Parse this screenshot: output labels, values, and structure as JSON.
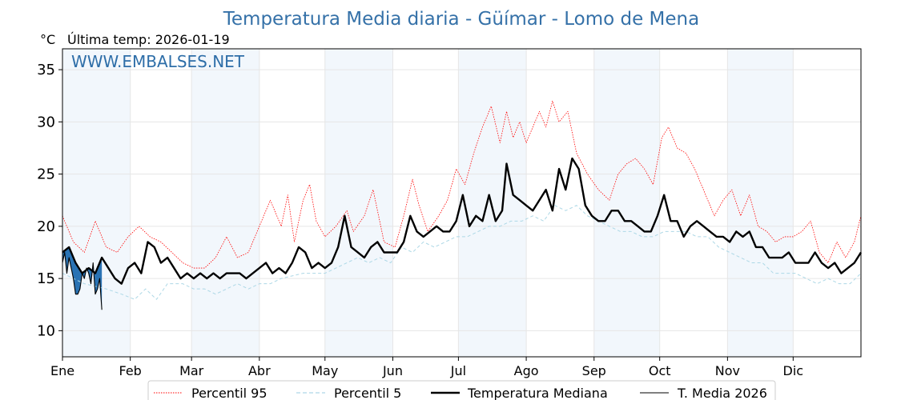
{
  "chart_data": {
    "type": "line",
    "title": "Temperatura Media diaria - Güímar - Lomo de Mena",
    "unit_label": "°C",
    "last_temp_label": "Última temp: 2026-01-19",
    "watermark": "WWW.EMBALSES.NET",
    "ylim": [
      7.5,
      37.0
    ],
    "xlim_days": [
      0,
      365
    ],
    "yticks": [
      10,
      15,
      20,
      25,
      30,
      35
    ],
    "months": [
      {
        "label": "Ene",
        "day": 0
      },
      {
        "label": "Feb",
        "day": 31
      },
      {
        "label": "Mar",
        "day": 59
      },
      {
        "label": "Abr",
        "day": 90
      },
      {
        "label": "May",
        "day": 120
      },
      {
        "label": "Jun",
        "day": 151
      },
      {
        "label": "Jul",
        "day": 181
      },
      {
        "label": "Ago",
        "day": 212
      },
      {
        "label": "Sep",
        "day": 243
      },
      {
        "label": "Oct",
        "day": 273
      },
      {
        "label": "Nov",
        "day": 304
      },
      {
        "label": "Dic",
        "day": 334
      }
    ],
    "grid": true,
    "legend_position": "bottom-center",
    "series": [
      {
        "name": "Percentil 95",
        "color": "#ff0000",
        "style": "dotted",
        "anchors": [
          [
            0,
            21.0
          ],
          [
            5,
            18.5
          ],
          [
            10,
            17.5
          ],
          [
            15,
            20.5
          ],
          [
            20,
            18.0
          ],
          [
            25,
            17.5
          ],
          [
            30,
            19.0
          ],
          [
            35,
            20.0
          ],
          [
            40,
            19.0
          ],
          [
            45,
            18.5
          ],
          [
            50,
            17.5
          ],
          [
            55,
            16.5
          ],
          [
            60,
            16.0
          ],
          [
            65,
            16.0
          ],
          [
            70,
            17.0
          ],
          [
            75,
            19.0
          ],
          [
            80,
            17.0
          ],
          [
            85,
            17.5
          ],
          [
            90,
            20.0
          ],
          [
            95,
            22.5
          ],
          [
            100,
            20.0
          ],
          [
            103,
            23.0
          ],
          [
            106,
            18.5
          ],
          [
            110,
            22.5
          ],
          [
            113,
            24.0
          ],
          [
            116,
            20.5
          ],
          [
            120,
            19.0
          ],
          [
            125,
            20.0
          ],
          [
            130,
            21.5
          ],
          [
            133,
            19.5
          ],
          [
            138,
            21.0
          ],
          [
            142,
            23.5
          ],
          [
            147,
            18.5
          ],
          [
            152,
            18.0
          ],
          [
            156,
            21.0
          ],
          [
            160,
            24.5
          ],
          [
            163,
            22.0
          ],
          [
            167,
            19.5
          ],
          [
            172,
            21.0
          ],
          [
            176,
            22.5
          ],
          [
            180,
            25.5
          ],
          [
            184,
            24.0
          ],
          [
            188,
            27.0
          ],
          [
            192,
            29.5
          ],
          [
            196,
            31.5
          ],
          [
            200,
            28.0
          ],
          [
            203,
            31.0
          ],
          [
            206,
            28.5
          ],
          [
            209,
            30.0
          ],
          [
            212,
            28.0
          ],
          [
            215,
            29.5
          ],
          [
            218,
            31.0
          ],
          [
            221,
            29.5
          ],
          [
            224,
            32.0
          ],
          [
            227,
            30.0
          ],
          [
            231,
            31.0
          ],
          [
            235,
            27.0
          ],
          [
            240,
            25.0
          ],
          [
            245,
            23.5
          ],
          [
            250,
            22.5
          ],
          [
            254,
            25.0
          ],
          [
            258,
            26.0
          ],
          [
            262,
            26.5
          ],
          [
            266,
            25.5
          ],
          [
            270,
            24.0
          ],
          [
            274,
            28.5
          ],
          [
            277,
            29.5
          ],
          [
            281,
            27.5
          ],
          [
            285,
            27.0
          ],
          [
            289,
            25.5
          ],
          [
            294,
            23.0
          ],
          [
            298,
            21.0
          ],
          [
            302,
            22.5
          ],
          [
            306,
            23.5
          ],
          [
            310,
            21.0
          ],
          [
            314,
            23.0
          ],
          [
            318,
            20.0
          ],
          [
            322,
            19.5
          ],
          [
            326,
            18.5
          ],
          [
            330,
            19.0
          ],
          [
            334,
            19.0
          ],
          [
            338,
            19.5
          ],
          [
            342,
            20.5
          ],
          [
            346,
            17.5
          ],
          [
            350,
            16.5
          ],
          [
            354,
            18.5
          ],
          [
            358,
            17.0
          ],
          [
            362,
            18.5
          ],
          [
            365,
            21.0
          ]
        ]
      },
      {
        "name": "Percentil 5",
        "color": "#add8e6",
        "style": "dashed",
        "anchors": [
          [
            0,
            15.5
          ],
          [
            10,
            14.5
          ],
          [
            20,
            14.0
          ],
          [
            27,
            13.5
          ],
          [
            33,
            13.0
          ],
          [
            38,
            14.0
          ],
          [
            43,
            13.0
          ],
          [
            48,
            14.5
          ],
          [
            55,
            14.5
          ],
          [
            60,
            14.0
          ],
          [
            65,
            14.0
          ],
          [
            70,
            13.5
          ],
          [
            75,
            14.0
          ],
          [
            80,
            14.5
          ],
          [
            85,
            14.0
          ],
          [
            90,
            14.5
          ],
          [
            95,
            14.5
          ],
          [
            100,
            15.0
          ],
          [
            110,
            15.5
          ],
          [
            120,
            15.5
          ],
          [
            125,
            16.0
          ],
          [
            130,
            16.5
          ],
          [
            135,
            17.0
          ],
          [
            140,
            16.5
          ],
          [
            145,
            17.0
          ],
          [
            150,
            16.5
          ],
          [
            155,
            18.0
          ],
          [
            160,
            17.5
          ],
          [
            165,
            18.5
          ],
          [
            170,
            18.0
          ],
          [
            175,
            18.5
          ],
          [
            180,
            19.0
          ],
          [
            185,
            19.0
          ],
          [
            190,
            19.5
          ],
          [
            195,
            20.0
          ],
          [
            200,
            20.0
          ],
          [
            205,
            20.5
          ],
          [
            210,
            20.5
          ],
          [
            215,
            21.0
          ],
          [
            220,
            20.5
          ],
          [
            225,
            22.0
          ],
          [
            230,
            21.5
          ],
          [
            235,
            22.0
          ],
          [
            240,
            21.0
          ],
          [
            245,
            20.5
          ],
          [
            250,
            20.0
          ],
          [
            255,
            19.5
          ],
          [
            260,
            19.5
          ],
          [
            265,
            19.0
          ],
          [
            270,
            19.0
          ],
          [
            275,
            19.5
          ],
          [
            280,
            19.5
          ],
          [
            285,
            19.5
          ],
          [
            290,
            19.0
          ],
          [
            295,
            19.0
          ],
          [
            300,
            18.0
          ],
          [
            305,
            17.5
          ],
          [
            310,
            17.0
          ],
          [
            315,
            16.5
          ],
          [
            320,
            16.5
          ],
          [
            325,
            15.5
          ],
          [
            330,
            15.5
          ],
          [
            335,
            15.5
          ],
          [
            340,
            15.0
          ],
          [
            345,
            14.5
          ],
          [
            350,
            15.0
          ],
          [
            355,
            14.5
          ],
          [
            360,
            14.5
          ],
          [
            365,
            15.5
          ]
        ]
      },
      {
        "name": "Temperatura Mediana",
        "color": "#000000",
        "style": "solid-thick",
        "anchors": [
          [
            0,
            17.5
          ],
          [
            3,
            18.0
          ],
          [
            6,
            16.5
          ],
          [
            9,
            15.5
          ],
          [
            12,
            16.0
          ],
          [
            15,
            15.5
          ],
          [
            18,
            17.0
          ],
          [
            21,
            16.0
          ],
          [
            24,
            15.0
          ],
          [
            27,
            14.5
          ],
          [
            30,
            16.0
          ],
          [
            33,
            16.5
          ],
          [
            36,
            15.5
          ],
          [
            39,
            18.5
          ],
          [
            42,
            18.0
          ],
          [
            45,
            16.5
          ],
          [
            48,
            17.0
          ],
          [
            51,
            16.0
          ],
          [
            54,
            15.0
          ],
          [
            57,
            15.5
          ],
          [
            60,
            15.0
          ],
          [
            63,
            15.5
          ],
          [
            66,
            15.0
          ],
          [
            69,
            15.5
          ],
          [
            72,
            15.0
          ],
          [
            75,
            15.5
          ],
          [
            78,
            15.5
          ],
          [
            81,
            15.5
          ],
          [
            84,
            15.0
          ],
          [
            87,
            15.5
          ],
          [
            90,
            16.0
          ],
          [
            93,
            16.5
          ],
          [
            96,
            15.5
          ],
          [
            99,
            16.0
          ],
          [
            102,
            15.5
          ],
          [
            105,
            16.5
          ],
          [
            108,
            18.0
          ],
          [
            111,
            17.5
          ],
          [
            114,
            16.0
          ],
          [
            117,
            16.5
          ],
          [
            120,
            16.0
          ],
          [
            123,
            16.5
          ],
          [
            126,
            18.0
          ],
          [
            129,
            21.0
          ],
          [
            132,
            18.0
          ],
          [
            135,
            17.5
          ],
          [
            138,
            17.0
          ],
          [
            141,
            18.0
          ],
          [
            144,
            18.5
          ],
          [
            147,
            17.5
          ],
          [
            150,
            17.5
          ],
          [
            153,
            17.5
          ],
          [
            156,
            18.5
          ],
          [
            159,
            21.0
          ],
          [
            162,
            19.5
          ],
          [
            165,
            19.0
          ],
          [
            168,
            19.5
          ],
          [
            171,
            20.0
          ],
          [
            174,
            19.5
          ],
          [
            177,
            19.5
          ],
          [
            180,
            20.5
          ],
          [
            183,
            23.0
          ],
          [
            186,
            20.0
          ],
          [
            189,
            21.0
          ],
          [
            192,
            20.5
          ],
          [
            195,
            23.0
          ],
          [
            198,
            20.5
          ],
          [
            201,
            21.5
          ],
          [
            203,
            26.0
          ],
          [
            206,
            23.0
          ],
          [
            209,
            22.5
          ],
          [
            212,
            22.0
          ],
          [
            215,
            21.5
          ],
          [
            218,
            22.5
          ],
          [
            221,
            23.5
          ],
          [
            224,
            21.5
          ],
          [
            227,
            25.5
          ],
          [
            230,
            23.5
          ],
          [
            233,
            26.5
          ],
          [
            236,
            25.5
          ],
          [
            239,
            22.0
          ],
          [
            242,
            21.0
          ],
          [
            245,
            20.5
          ],
          [
            248,
            20.5
          ],
          [
            251,
            21.5
          ],
          [
            254,
            21.5
          ],
          [
            257,
            20.5
          ],
          [
            260,
            20.5
          ],
          [
            263,
            20.0
          ],
          [
            266,
            19.5
          ],
          [
            269,
            19.5
          ],
          [
            272,
            21.0
          ],
          [
            275,
            23.0
          ],
          [
            278,
            20.5
          ],
          [
            281,
            20.5
          ],
          [
            284,
            19.0
          ],
          [
            287,
            20.0
          ],
          [
            290,
            20.5
          ],
          [
            293,
            20.0
          ],
          [
            296,
            19.5
          ],
          [
            299,
            19.0
          ],
          [
            302,
            19.0
          ],
          [
            305,
            18.5
          ],
          [
            308,
            19.5
          ],
          [
            311,
            19.0
          ],
          [
            314,
            19.5
          ],
          [
            317,
            18.0
          ],
          [
            320,
            18.0
          ],
          [
            323,
            17.0
          ],
          [
            326,
            17.0
          ],
          [
            329,
            17.0
          ],
          [
            332,
            17.5
          ],
          [
            335,
            16.5
          ],
          [
            338,
            16.5
          ],
          [
            341,
            16.5
          ],
          [
            344,
            17.5
          ],
          [
            347,
            16.5
          ],
          [
            350,
            16.0
          ],
          [
            353,
            16.5
          ],
          [
            356,
            15.5
          ],
          [
            359,
            16.0
          ],
          [
            362,
            16.5
          ],
          [
            365,
            17.5
          ]
        ]
      },
      {
        "name": "T. Media 2026",
        "color": "#000000",
        "style": "solid-thin",
        "fill_color": "#1f6bb0",
        "anchors": [
          [
            0,
            16.5
          ],
          [
            1,
            17.5
          ],
          [
            2,
            15.5
          ],
          [
            3,
            17.0
          ],
          [
            4,
            16.0
          ],
          [
            5,
            15.0
          ],
          [
            6,
            13.5
          ],
          [
            7,
            13.5
          ],
          [
            8,
            14.0
          ],
          [
            9,
            15.5
          ],
          [
            10,
            15.0
          ],
          [
            11,
            16.0
          ],
          [
            12,
            15.5
          ],
          [
            13,
            14.5
          ],
          [
            14,
            16.5
          ],
          [
            15,
            13.5
          ],
          [
            16,
            14.0
          ],
          [
            17,
            15.0
          ],
          [
            18,
            12.0
          ]
        ]
      }
    ]
  }
}
